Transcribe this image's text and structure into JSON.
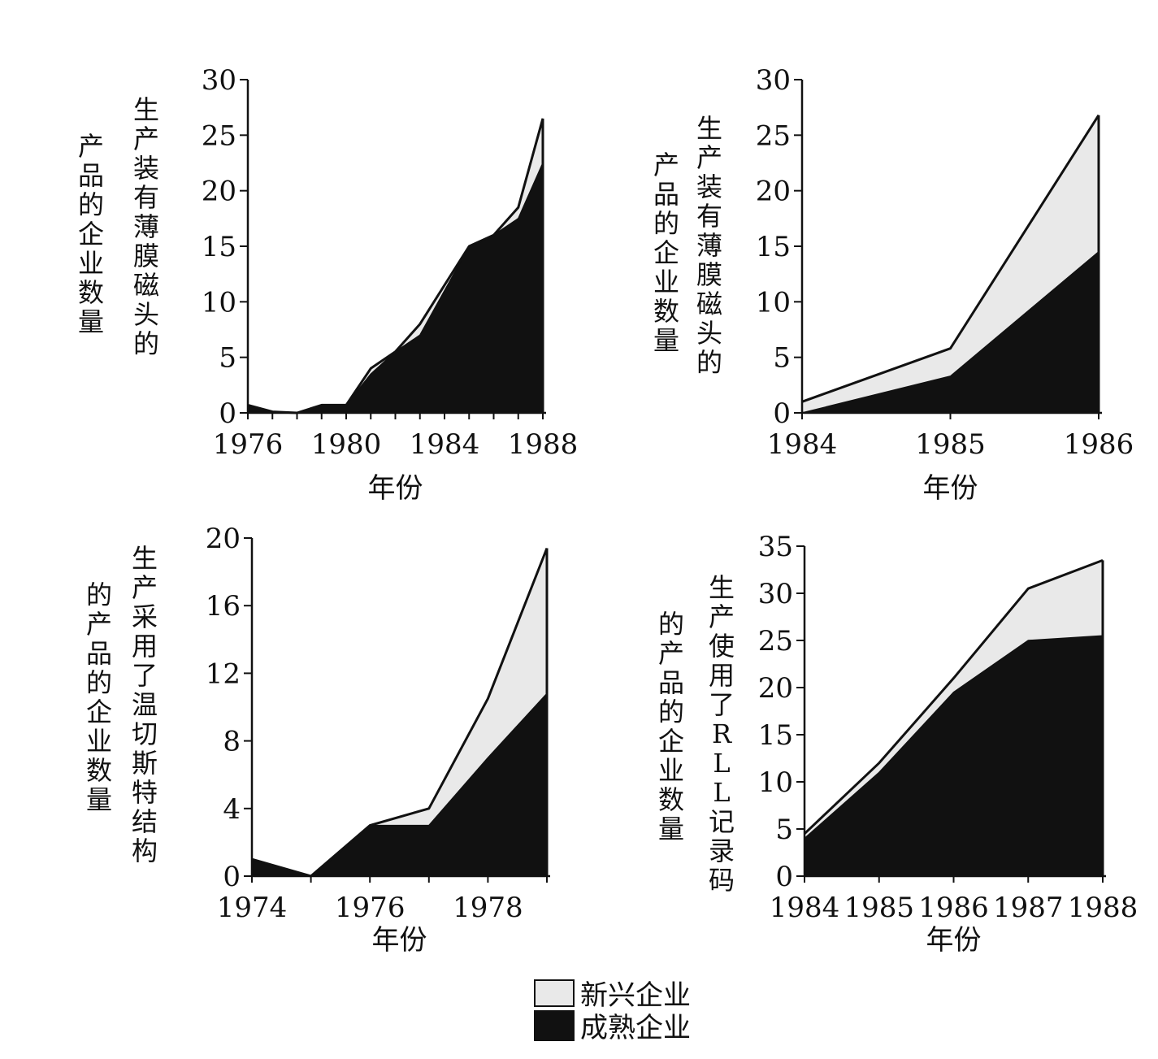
{
  "legend": {
    "items": [
      {
        "label": "新兴企业",
        "color": "#e9e9e9"
      },
      {
        "label": "成熟企业",
        "color": "#111111"
      }
    ]
  },
  "chart_data": [
    {
      "type": "area",
      "xlabel": "年份",
      "ylabel_lines": [
        "生产装有薄膜磁头的",
        "产品的企业数量"
      ],
      "xticks": [
        1976,
        1980,
        1984,
        1988
      ],
      "yticks": [
        0,
        5,
        10,
        15,
        20,
        25,
        30
      ],
      "xlim": [
        1976,
        1988
      ],
      "ylim": [
        0,
        30
      ],
      "x": [
        1976,
        1977,
        1978,
        1979,
        1980,
        1981,
        1982,
        1983,
        1984,
        1985,
        1986,
        1987,
        1988
      ],
      "series": [
        {
          "name": "成熟企业",
          "values": [
            0.7,
            0.1,
            0.0,
            0.7,
            0.7,
            3.5,
            5.5,
            7.0,
            11.0,
            15.0,
            16.0,
            17.5,
            22.5
          ]
        },
        {
          "name": "新兴企业",
          "values": [
            0.0,
            0.0,
            0.0,
            0.0,
            0.0,
            0.5,
            0.0,
            1.0,
            0.5,
            0.0,
            0.0,
            1.0,
            4.0
          ]
        }
      ]
    },
    {
      "type": "area",
      "xlabel": "年份",
      "ylabel_lines": [
        "生产装有薄膜磁头的",
        "产品的企业数量"
      ],
      "xticks": [
        1984,
        1985,
        1986
      ],
      "yticks": [
        0,
        5,
        10,
        15,
        20,
        25,
        30
      ],
      "xlim": [
        1984,
        1986
      ],
      "ylim": [
        0,
        30
      ],
      "x": [
        1984,
        1985,
        1986
      ],
      "series": [
        {
          "name": "成熟企业",
          "values": [
            0.0,
            3.3,
            14.5
          ]
        },
        {
          "name": "新兴企业",
          "values": [
            1.0,
            2.5,
            12.3
          ]
        }
      ]
    },
    {
      "type": "area",
      "xlabel": "年份",
      "ylabel_lines": [
        "生产采用了温切斯特结构",
        "的产品的企业数量"
      ],
      "xticks": [
        1974,
        1976,
        1978
      ],
      "yticks": [
        0,
        4,
        8,
        12,
        16,
        20
      ],
      "xlim": [
        1974,
        1979
      ],
      "ylim": [
        0,
        20
      ],
      "x": [
        1974,
        1975,
        1976,
        1977,
        1978,
        1979
      ],
      "series": [
        {
          "name": "成熟企业",
          "values": [
            1.0,
            0.0,
            3.0,
            3.0,
            7.0,
            10.8
          ]
        },
        {
          "name": "新兴企业",
          "values": [
            0.0,
            0.0,
            0.0,
            1.0,
            3.5,
            8.6
          ]
        }
      ]
    },
    {
      "type": "area",
      "xlabel": "年份",
      "ylabel_lines": [
        "生产使用了RLL记录码",
        "的产品的企业数量"
      ],
      "xticks": [
        1984,
        1985,
        1986,
        1987,
        1988
      ],
      "yticks": [
        0,
        5,
        10,
        15,
        20,
        25,
        30,
        35
      ],
      "xlim": [
        1984,
        1988
      ],
      "ylim": [
        0,
        35
      ],
      "x": [
        1984,
        1985,
        1986,
        1987,
        1988
      ],
      "series": [
        {
          "name": "成熟企业",
          "values": [
            4.0,
            11.0,
            19.5,
            25.0,
            25.5
          ]
        },
        {
          "name": "新兴企业",
          "values": [
            0.5,
            1.0,
            1.5,
            5.5,
            8.0
          ]
        }
      ]
    }
  ]
}
